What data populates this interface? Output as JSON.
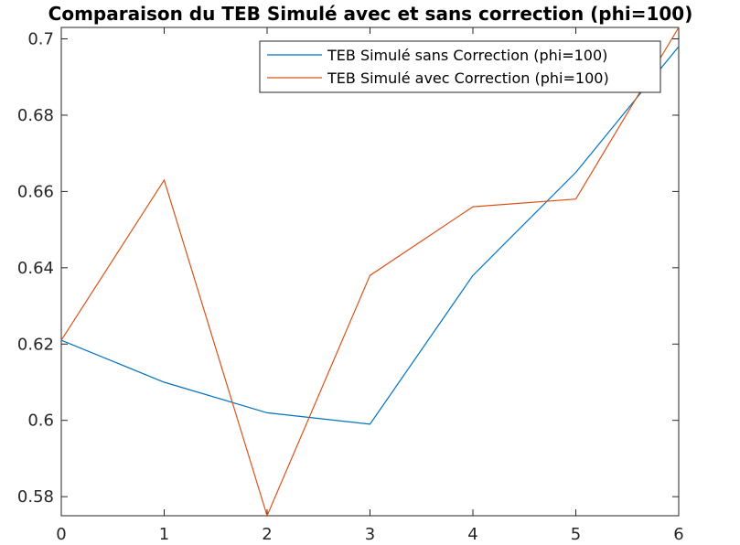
{
  "chart_data": {
    "type": "line",
    "title": "Comparaison du TEB Simulé avec et sans correction (phi=100)",
    "xlabel": "",
    "ylabel": "",
    "xlim": [
      0,
      6
    ],
    "ylim": [
      0.575,
      0.703
    ],
    "x_ticks": [
      0,
      1,
      2,
      3,
      4,
      5,
      6
    ],
    "x_tick_labels": [
      "0",
      "1",
      "2",
      "3",
      "4",
      "5",
      "6"
    ],
    "y_ticks": [
      0.58,
      0.6,
      0.62,
      0.64,
      0.66,
      0.68,
      0.7
    ],
    "y_tick_labels": [
      "0.58",
      "0.6",
      "0.62",
      "0.64",
      "0.66",
      "0.68",
      "0.7"
    ],
    "grid": false,
    "legend_position": "top-right",
    "series": [
      {
        "name": "TEB Simulé sans Correction (phi=100)",
        "color": "#0072BD",
        "x": [
          0,
          1,
          2,
          3,
          4,
          5,
          6
        ],
        "y": [
          0.621,
          0.61,
          0.602,
          0.599,
          0.638,
          0.665,
          0.698
        ]
      },
      {
        "name": "TEB Simulé avec Correction (phi=100)",
        "color": "#D95319",
        "x": [
          0,
          1,
          2,
          3,
          4,
          5,
          6
        ],
        "y": [
          0.621,
          0.663,
          0.575,
          0.638,
          0.656,
          0.658,
          0.703
        ]
      }
    ]
  }
}
